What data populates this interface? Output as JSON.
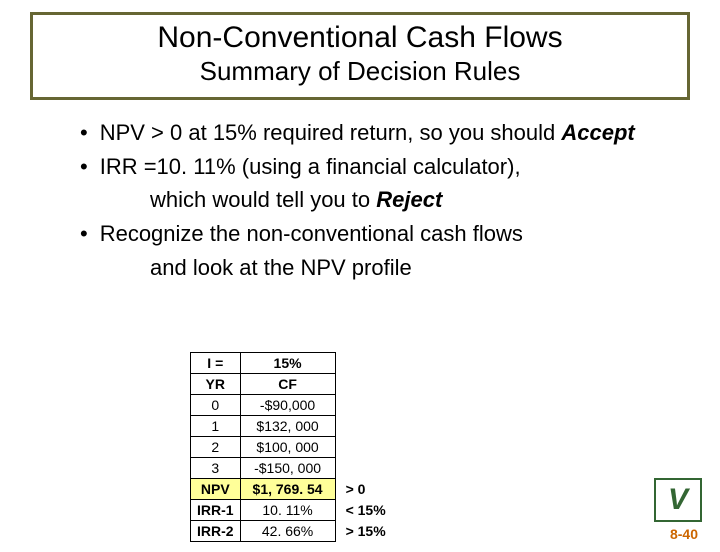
{
  "title": {
    "main": "Non-Conventional Cash Flows",
    "sub": "Summary of Decision Rules"
  },
  "bullets": [
    {
      "pre": "NPV > 0 at 15% required return, so you should ",
      "bold": "Accept",
      "post": "",
      "cont": ""
    },
    {
      "pre": "IRR =10. 11% (using a financial calculator), ",
      "bold": "",
      "post": "",
      "cont_pre": "which would tell you to ",
      "cont_bold": "Reject"
    },
    {
      "pre": "Recognize the non-conventional cash flows ",
      "bold": "",
      "post": "",
      "cont": "and look at the NPV profile"
    }
  ],
  "table": {
    "header": {
      "c1": "I =",
      "c2": "15%",
      "c3": ""
    },
    "sub": {
      "c1": "YR",
      "c2": "CF",
      "c3": ""
    },
    "rows": [
      {
        "c1": "0",
        "c2": "-$90,000",
        "c3": ""
      },
      {
        "c1": "1",
        "c2": "$132, 000",
        "c3": ""
      },
      {
        "c1": "2",
        "c2": "$100, 000",
        "c3": ""
      },
      {
        "c1": "3",
        "c2": "-$150, 000",
        "c3": ""
      }
    ],
    "npv": {
      "c1": "NPV",
      "c2": "$1, 769. 54",
      "c3": "> 0"
    },
    "irr1": {
      "c1": "IRR-1",
      "c2": "10. 11%",
      "c3": "< 15%"
    },
    "irr2": {
      "c1": "IRR-2",
      "c2": "42. 66%",
      "c3": "> 15%"
    }
  },
  "page_number": "8-40",
  "logo_text": "V"
}
